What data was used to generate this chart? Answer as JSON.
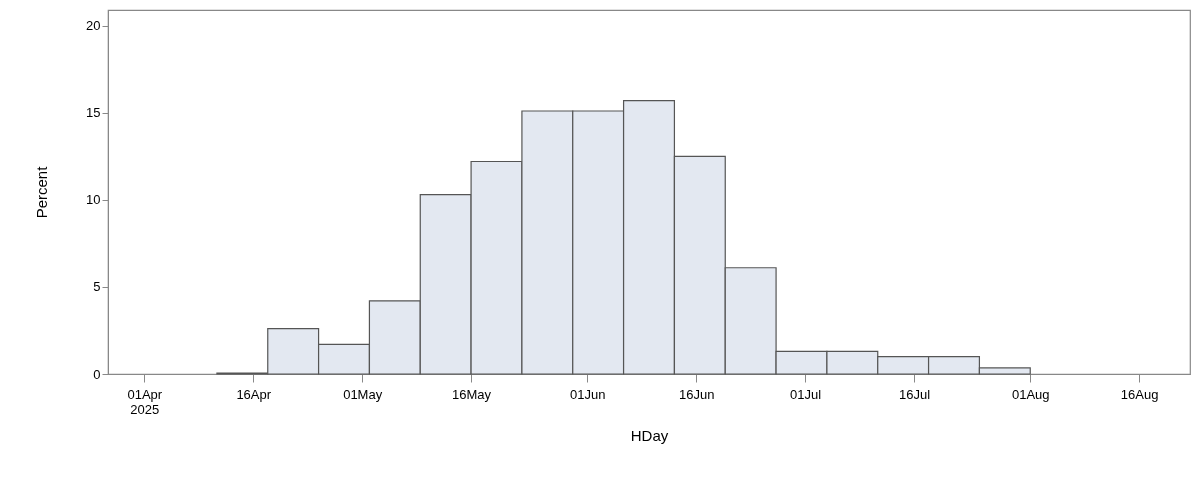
{
  "chart_data": {
    "type": "histogram",
    "xlabel": "HDay",
    "ylabel": "Percent",
    "bins": [
      "2025-04-11",
      "2025-04-18",
      "2025-04-25",
      "2025-05-02",
      "2025-05-09",
      "2025-05-16",
      "2025-05-23",
      "2025-05-30",
      "2025-06-06",
      "2025-06-13",
      "2025-06-20",
      "2025-06-27",
      "2025-07-04",
      "2025-07-11",
      "2025-07-18",
      "2025-07-25",
      "2025-08-01"
    ],
    "values": [
      0.05,
      2.6,
      1.7,
      4.2,
      10.3,
      12.2,
      15.1,
      15.1,
      15.7,
      12.5,
      6.1,
      1.3,
      1.3,
      1.0,
      1.0,
      0.35
    ],
    "color": "#e3e8f1",
    "xlim": [
      "2025-03-27",
      "2025-08-23"
    ],
    "xticks": [
      {
        "value": "2025-04-01",
        "label": "01Apr 2025"
      },
      {
        "value": "2025-04-16",
        "label": "16Apr"
      },
      {
        "value": "2025-05-01",
        "label": "01May"
      },
      {
        "value": "2025-05-16",
        "label": "16May"
      },
      {
        "value": "2025-06-01",
        "label": "01Jun"
      },
      {
        "value": "2025-06-16",
        "label": "16Jun"
      },
      {
        "value": "2025-07-01",
        "label": "01Jul"
      },
      {
        "value": "2025-07-16",
        "label": "16Jul"
      },
      {
        "value": "2025-08-01",
        "label": "01Aug"
      },
      {
        "value": "2025-08-16",
        "label": "16Aug"
      }
    ],
    "ylim": [
      0,
      20.9
    ],
    "yticks": [
      0,
      5,
      10,
      15,
      20
    ],
    "grid": false
  }
}
